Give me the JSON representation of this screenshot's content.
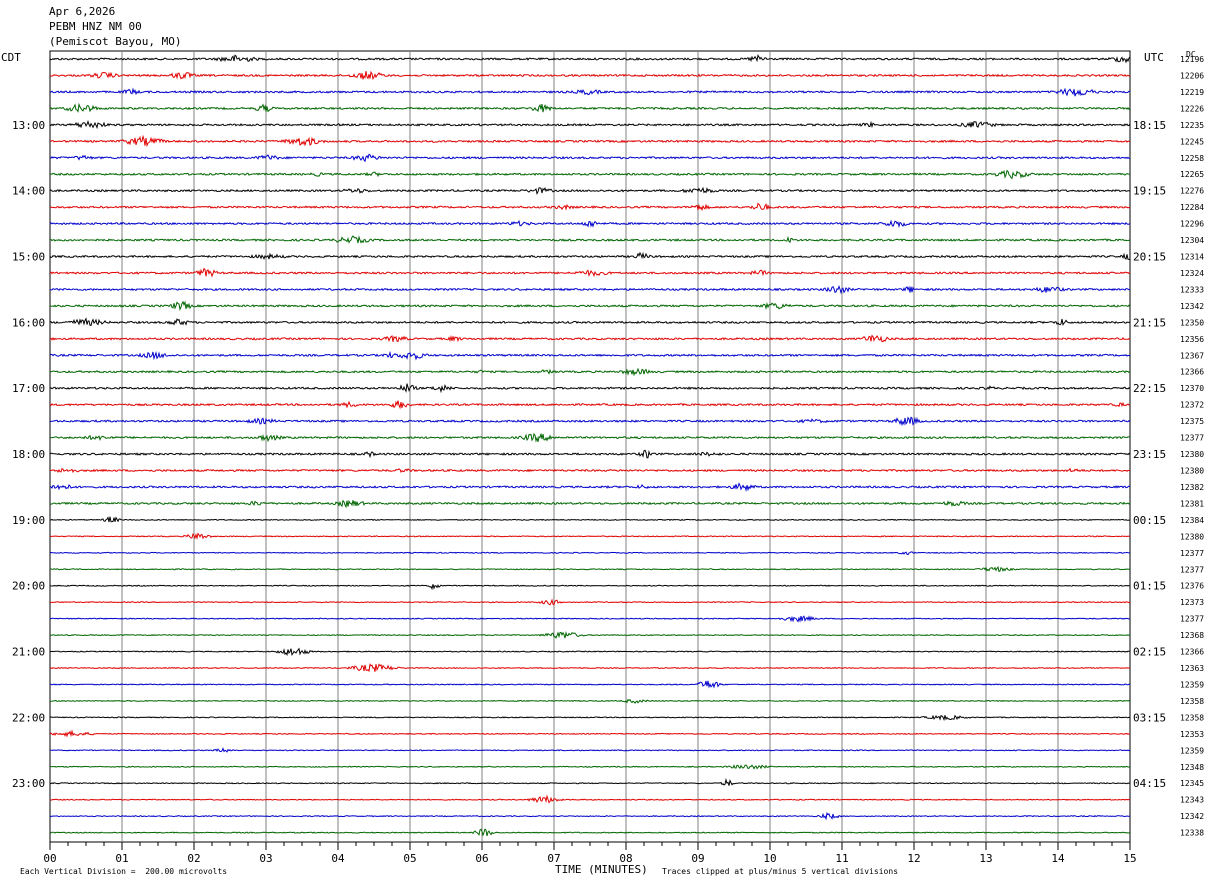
{
  "header": {
    "date": "Apr 6,2026",
    "station": "PEBM HNZ NM 00",
    "location": "(Pemiscot Bayou, MO)"
  },
  "chart_data": {
    "type": "line",
    "title": "PEBM HNZ NM 00",
    "left_timezone": "CDT",
    "right_timezone": "UTC",
    "dc_label": "DC",
    "xlabel": "TIME (MINUTES)",
    "xlim": [
      0,
      15
    ],
    "x_ticks": [
      "00",
      "01",
      "02",
      "03",
      "04",
      "05",
      "06",
      "07",
      "08",
      "09",
      "10",
      "11",
      "12",
      "13",
      "14",
      "15"
    ],
    "trace_colors": [
      "#000000",
      "#e00000",
      "#0000cc",
      "#006600"
    ],
    "left_hour_labels": [
      "13:00",
      "14:00",
      "15:00",
      "16:00",
      "17:00",
      "18:00",
      "19:00",
      "20:00",
      "21:00",
      "22:00",
      "23:00"
    ],
    "right_hour_labels": [
      "18:15",
      "19:15",
      "20:15",
      "21:15",
      "22:15",
      "23:15",
      "00:15",
      "01:15",
      "02:15",
      "03:15",
      "04:15"
    ],
    "dc_offsets": [
      "12196",
      "12206",
      "12219",
      "12226",
      "12235",
      "12245",
      "12258",
      "12265",
      "12276",
      "12284",
      "12296",
      "12304",
      "12314",
      "12324",
      "12333",
      "12342",
      "12350",
      "12356",
      "12367",
      "12366",
      "12370",
      "12372",
      "12375",
      "12377",
      "12380",
      "12380",
      "12382",
      "12381",
      "12384",
      "12380",
      "12377",
      "12377",
      "12376",
      "12373",
      "12377",
      "12368",
      "12366",
      "12363",
      "12359",
      "12358",
      "12358",
      "12353",
      "12359",
      "12348",
      "12345",
      "12343",
      "12342",
      "12338"
    ],
    "footer_scale": "Each Vertical Division =  200.00 microvolts",
    "footer_clip": "Traces clipped at plus/minus 5 vertical divisions"
  }
}
